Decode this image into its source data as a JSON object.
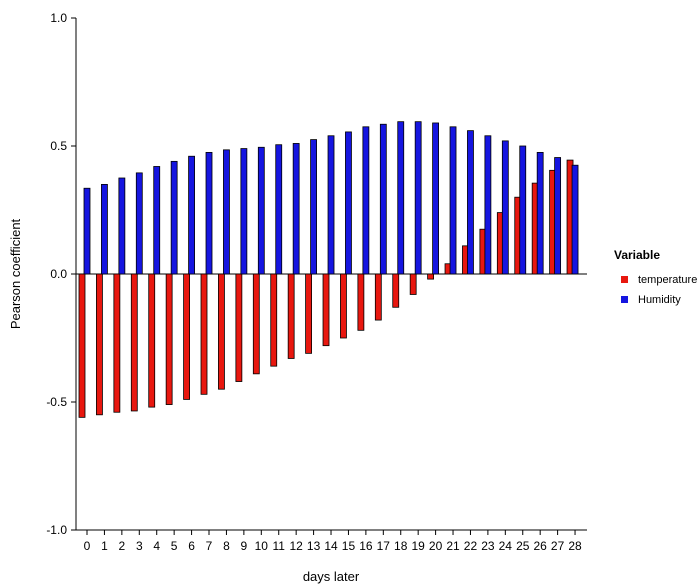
{
  "chart_data": {
    "type": "bar",
    "title": "",
    "xlabel": "days later",
    "ylabel": "Pearson coefficient",
    "ylim": [
      -1.0,
      1.0
    ],
    "yticks": [
      -1.0,
      -0.5,
      0.0,
      0.5,
      1.0
    ],
    "ytick_labels": [
      "-1.0",
      "-0.5",
      "0.0",
      "0.5",
      "1.0"
    ],
    "categories": [
      "0",
      "1",
      "2",
      "3",
      "4",
      "5",
      "6",
      "7",
      "8",
      "9",
      "10",
      "11",
      "12",
      "13",
      "14",
      "15",
      "16",
      "17",
      "18",
      "19",
      "20",
      "21",
      "22",
      "23",
      "24",
      "25",
      "26",
      "27",
      "28"
    ],
    "series": [
      {
        "name": "temperature",
        "color": "#e8170f",
        "values": [
          -0.56,
          -0.55,
          -0.54,
          -0.535,
          -0.52,
          -0.51,
          -0.49,
          -0.47,
          -0.45,
          -0.42,
          -0.39,
          -0.36,
          -0.33,
          -0.31,
          -0.28,
          -0.25,
          -0.22,
          -0.18,
          -0.13,
          -0.08,
          -0.02,
          0.04,
          0.11,
          0.175,
          0.24,
          0.3,
          0.355,
          0.405,
          0.445
        ]
      },
      {
        "name": "Humidity",
        "color": "#1515e0",
        "values": [
          0.335,
          0.35,
          0.375,
          0.395,
          0.42,
          0.44,
          0.46,
          0.475,
          0.485,
          0.49,
          0.495,
          0.505,
          0.51,
          0.525,
          0.54,
          0.555,
          0.575,
          0.585,
          0.595,
          0.595,
          0.59,
          0.575,
          0.56,
          0.54,
          0.52,
          0.5,
          0.475,
          0.455,
          0.425
        ]
      }
    ],
    "legend": {
      "title": "Variable",
      "position": "right"
    },
    "grid": false
  }
}
